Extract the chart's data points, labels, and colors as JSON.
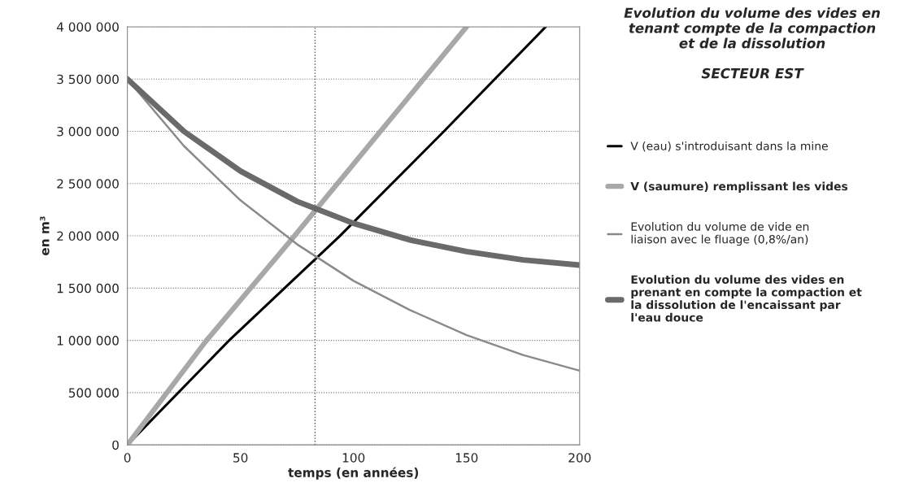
{
  "chart_data": {
    "type": "line",
    "title": "Evolution du volume des vides en tenant compte de la compaction et de la dissolution",
    "subtitle": "SECTEUR EST",
    "xlabel": "temps (en années)",
    "ylabel": "en m³",
    "series": [
      {
        "name": "V (eau) s'introduisant dans la mine",
        "color": "#000000",
        "x": [
          0,
          45,
          94,
          140,
          185
        ],
        "values": [
          0,
          1000000,
          2000000,
          3000000,
          4000000
        ]
      },
      {
        "name": "V (saumure) remplissant les vides",
        "color": "#a8a8a8",
        "x": [
          0,
          35,
          72,
          110,
          150
        ],
        "values": [
          0,
          1000000,
          1950000,
          2950000,
          4000000
        ]
      },
      {
        "name": "Evolution du volume de vide en liaison avec le fluage (0,8%/an)",
        "color": "#8a8a8a",
        "x": [
          0,
          25,
          50,
          75,
          100,
          125,
          150,
          175,
          200
        ],
        "values": [
          3500000,
          2860000,
          2340000,
          1920000,
          1570000,
          1290000,
          1050000,
          860000,
          710000
        ]
      },
      {
        "name": "Evolution du volume des vides en prenant en compte la compaction et la dissolution de l'encaissant par l'eau douce",
        "color": "#6a6a6a",
        "x": [
          0,
          25,
          50,
          75,
          100,
          125,
          150,
          175,
          200
        ],
        "values": [
          3500000,
          3000000,
          2620000,
          2330000,
          2120000,
          1960000,
          1850000,
          1770000,
          1720000
        ]
      }
    ],
    "xlim": [
      0,
      200
    ],
    "xticks": [
      0,
      50,
      100,
      150,
      200
    ],
    "ylim": [
      0,
      4000000
    ],
    "yticks": [
      0,
      {
        "value": 500000,
        "label": "500 000"
      },
      {
        "value": 1000000,
        "label": "1 000 000"
      },
      {
        "value": 1500000,
        "label": "1 500 000"
      },
      {
        "value": 2000000,
        "label": "2 000 000"
      },
      {
        "value": 2500000,
        "label": "2 500 000"
      },
      {
        "value": 3000000,
        "label": "3 000 000"
      },
      {
        "value": 3500000,
        "label": "3 500 000"
      },
      {
        "value": 4000000,
        "label": "4 000 000"
      }
    ],
    "ref_lines": [
      {
        "axis": "x",
        "value": 83,
        "color": "#555555",
        "line_style": "dotted"
      }
    ],
    "grid": "y",
    "legend": "right",
    "marker": "none",
    "line_style": "solid"
  }
}
